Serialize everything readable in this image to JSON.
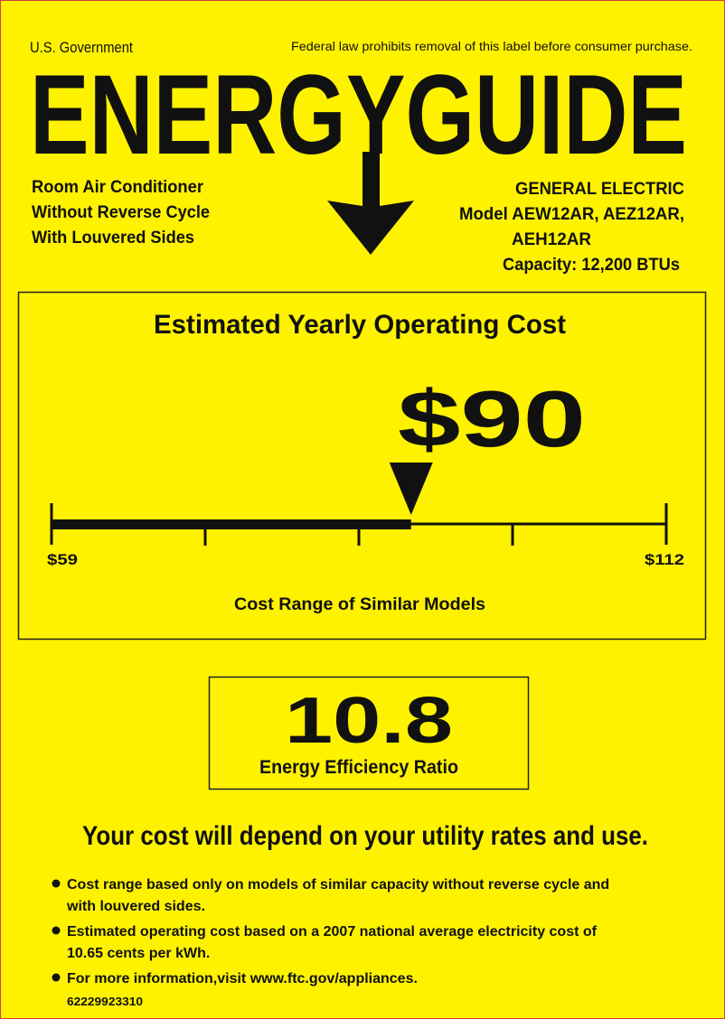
{
  "header": {
    "government": "U.S. Government",
    "notice": "Federal law prohibits removal of this label before consumer purchase.",
    "title": "ENERGYGUIDE"
  },
  "product": {
    "lines": [
      "Room Air Conditioner",
      "Without Reverse Cycle",
      "With Louvered Sides"
    ]
  },
  "manufacturer": {
    "lines": [
      "GENERAL ELECTRIC",
      "Model AEW12AR, AEZ12AR,",
      "AEH12AR",
      "Capacity: 12,200 BTUs"
    ]
  },
  "cost": {
    "heading": "Estimated Yearly Operating Cost",
    "estimate": {
      "value": 90,
      "label": "$90"
    },
    "range": {
      "low": {
        "value": 59,
        "label": "$59"
      },
      "high": {
        "value": 112,
        "label": "$112"
      },
      "caption": "Cost Range of Similar Models"
    }
  },
  "efficiency": {
    "value": "10.8",
    "label": "Energy Efficiency Ratio"
  },
  "note": "Your cost will depend on your utility rates and use.",
  "bullets": [
    [
      "Cost range based only on models of similar capacity without reverse cycle and",
      "with louvered sides."
    ],
    [
      "Estimated operating cost based on a 2007 national average electricity cost of",
      "10.65 cents per kWh."
    ],
    [
      "For more information,visit www.ftc.gov/appliances."
    ]
  ],
  "code": "62229923310"
}
